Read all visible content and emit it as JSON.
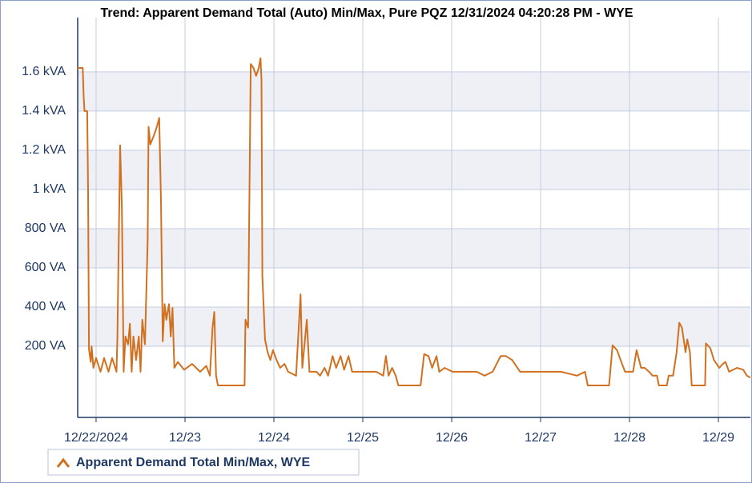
{
  "chart_data": {
    "type": "line",
    "title": "Trend: Apparent Demand Total (Auto) Min/Max, Pure PQZ 12/31/2024 04:20:28 PM - WYE",
    "x": [
      -0.21,
      -0.15,
      -0.14,
      -0.13,
      -0.1,
      -0.09,
      -0.08,
      -0.06,
      -0.05,
      -0.03,
      0,
      0.05,
      0.09,
      0.14,
      0.18,
      0.23,
      0.24,
      0.27,
      0.29,
      0.31,
      0.33,
      0.36,
      0.38,
      0.4,
      0.42,
      0.45,
      0.48,
      0.5,
      0.52,
      0.55,
      0.58,
      0.59,
      0.61,
      0.65,
      0.68,
      0.71,
      0.73,
      0.75,
      0.77,
      0.79,
      0.82,
      0.84,
      0.86,
      0.88,
      0.92,
      0.99,
      1.08,
      1.17,
      1.24,
      1.28,
      1.31,
      1.33,
      1.35,
      1.37,
      1.67,
      1.68,
      1.71,
      1.74,
      1.77,
      1.8,
      1.83,
      1.85,
      1.86,
      1.87,
      1.9,
      1.93,
      1.96,
      1.99,
      2.03,
      2.07,
      2.12,
      2.16,
      2.25,
      2.3,
      2.32,
      2.37,
      2.4,
      2.48,
      2.52,
      2.57,
      2.61,
      2.66,
      2.7,
      2.75,
      2.79,
      2.84,
      2.88,
      2.97,
      3.06,
      3.15,
      3.23,
      3.26,
      3.29,
      3.33,
      3.37,
      3.4,
      3.65,
      3.69,
      3.74,
      3.78,
      3.83,
      3.86,
      3.92,
      4.01,
      4.1,
      4.19,
      4.28,
      4.37,
      4.46,
      4.55,
      4.61,
      4.68,
      4.77,
      4.86,
      4.95,
      5.05,
      5.14,
      5.23,
      5.32,
      5.41,
      5.5,
      5.53,
      5.77,
      5.81,
      5.86,
      5.9,
      5.95,
      6.04,
      6.08,
      6.13,
      6.17,
      6.22,
      6.26,
      6.31,
      6.33,
      6.42,
      6.44,
      6.49,
      6.53,
      6.56,
      6.59,
      6.63,
      6.65,
      6.68,
      6.7,
      6.85,
      6.86,
      6.91,
      6.95,
      7.01,
      7.05,
      7.08,
      7.12,
      7.21,
      7.28,
      7.32,
      7.36
    ],
    "series": [
      {
        "name": "Apparent Demand Total Min/Max, WYE",
        "color": "#d2701f",
        "values": [
          1620,
          1620,
          1480,
          1400,
          1400,
          990,
          185,
          120,
          200,
          90,
          140,
          70,
          140,
          70,
          140,
          70,
          250,
          1225,
          905,
          70,
          250,
          210,
          315,
          70,
          250,
          130,
          250,
          70,
          335,
          210,
          740,
          1320,
          1230,
          1275,
          1315,
          1365,
          945,
          225,
          415,
          335,
          415,
          250,
          395,
          90,
          120,
          80,
          110,
          70,
          100,
          50,
          295,
          375,
          50,
          0,
          0,
          335,
          295,
          1640,
          1620,
          1580,
          1620,
          1670,
          1560,
          560,
          235,
          170,
          130,
          180,
          130,
          90,
          110,
          70,
          50,
          465,
          90,
          335,
          70,
          70,
          50,
          90,
          50,
          150,
          90,
          150,
          80,
          150,
          70,
          70,
          70,
          70,
          50,
          150,
          50,
          90,
          50,
          0,
          0,
          160,
          150,
          90,
          150,
          70,
          90,
          70,
          70,
          70,
          70,
          50,
          70,
          150,
          150,
          130,
          70,
          70,
          70,
          70,
          70,
          70,
          60,
          50,
          70,
          0,
          0,
          205,
          180,
          130,
          70,
          70,
          180,
          90,
          90,
          70,
          50,
          50,
          0,
          0,
          50,
          50,
          170,
          320,
          295,
          170,
          235,
          170,
          0,
          0,
          215,
          190,
          130,
          90,
          110,
          120,
          70,
          90,
          80,
          50,
          40
        ]
      }
    ],
    "xlim": [
      -0.207,
      7.36
    ],
    "xticks": [
      {
        "value": 0,
        "label": "12/22/2024"
      },
      {
        "value": 1,
        "label": "12/23"
      },
      {
        "value": 2,
        "label": "12/24"
      },
      {
        "value": 3,
        "label": "12/25"
      },
      {
        "value": 4,
        "label": "12/26"
      },
      {
        "value": 5,
        "label": "12/27"
      },
      {
        "value": 6,
        "label": "12/28"
      },
      {
        "value": 7,
        "label": "12/29"
      }
    ],
    "ylim": [
      -163,
      1877
    ],
    "yticks": [
      {
        "value": 200,
        "label": "200 VA"
      },
      {
        "value": 400,
        "label": "400 VA"
      },
      {
        "value": 600,
        "label": "600 VA"
      },
      {
        "value": 800,
        "label": "800 VA"
      },
      {
        "value": 1000,
        "label": "1 kVA"
      },
      {
        "value": 1200,
        "label": "1.2 kVA"
      },
      {
        "value": 1400,
        "label": "1.4 kVA"
      },
      {
        "value": 1600,
        "label": "1.6 kVA"
      }
    ],
    "grid": true
  }
}
